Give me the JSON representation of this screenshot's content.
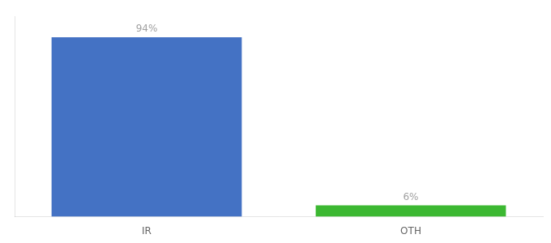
{
  "chart_data": {
    "type": "bar",
    "categories": [
      "IR",
      "OTH"
    ],
    "values": [
      94,
      6
    ],
    "value_labels": [
      "94%",
      "6%"
    ],
    "colors": [
      "#4472c4",
      "#3cb832"
    ],
    "ylim": [
      0,
      105
    ],
    "grid": false,
    "data_labels": true,
    "tick_labels": "x"
  }
}
